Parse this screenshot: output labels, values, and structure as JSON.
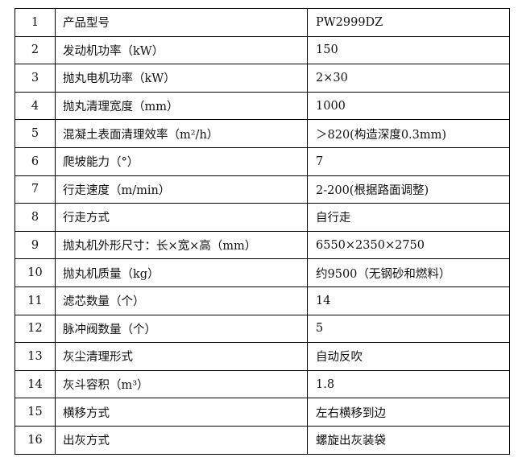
{
  "rows": [
    {
      "no": "1",
      "param": "产品型号",
      "value": "PW2999DZ"
    },
    {
      "no": "2",
      "param": "发动机功率（kW）",
      "value": "150"
    },
    {
      "no": "3",
      "param": "抛丸电机功率（kW）",
      "value": "2×30"
    },
    {
      "no": "4",
      "param": "抛丸清理宽度（mm）",
      "value": "1000"
    },
    {
      "no": "5",
      "param": "混凝土表面清理效率（m²/h）",
      "value": "＞820(构造深度0.3mm)"
    },
    {
      "no": "6",
      "param": "爬坡能力（°）",
      "value": "7"
    },
    {
      "no": "7",
      "param": "行走速度（m/min）",
      "value": "2-200(根据路面调整)"
    },
    {
      "no": "8",
      "param": "行走方式",
      "value": "自行走"
    },
    {
      "no": "9",
      "param": "抛丸机外形尺寸：长×宽×高（mm）",
      "value": "6550×2350×2750"
    },
    {
      "no": "10",
      "param": "抛丸机质量（kg）",
      "value": "约9500（无钢砂和燃料）"
    },
    {
      "no": "11",
      "param": "滤芯数量（个）",
      "value": "14"
    },
    {
      "no": "12",
      "param": "脉冲阀数量（个）",
      "value": "5"
    },
    {
      "no": "13",
      "param": "灰尘清理形式",
      "value": "自动反吹"
    },
    {
      "no": "14",
      "param": "灰斗容积（m³）",
      "value": "1.8"
    },
    {
      "no": "15",
      "param": "横移方式",
      "value": "左右横移到边"
    },
    {
      "no": "16",
      "param": "出灰方式",
      "value": "螺旋出灰装袋"
    }
  ]
}
